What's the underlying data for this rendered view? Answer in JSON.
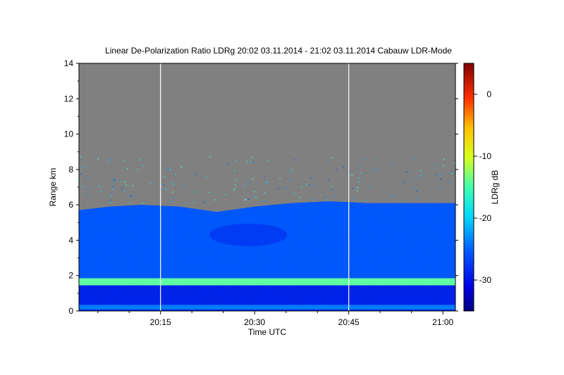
{
  "chart_data": {
    "type": "heatmap",
    "title": "Linear De-Polarization Ratio LDRg   20:02 03.11.2014 - 21:02 03.11.2014 Cabauw LDR-Mode",
    "xlabel": "Time UTC",
    "ylabel": "Range km",
    "colorbar_label": "LDRg dB",
    "x_range": [
      "20:02",
      "21:02"
    ],
    "x_ticks": [
      "20:15",
      "20:30",
      "20:45",
      "21:00"
    ],
    "y_range": [
      0,
      14
    ],
    "y_ticks": [
      0,
      2,
      4,
      6,
      8,
      10,
      12,
      14
    ],
    "colorbar_range": [
      -35,
      5
    ],
    "colorbar_ticks": [
      0,
      -10,
      -20,
      -30
    ],
    "background_color": "#808080",
    "vertical_gaps_utc": [
      "20:15",
      "20:45"
    ],
    "cloud_top_km": [
      {
        "time": "20:02",
        "top": 5.7
      },
      {
        "time": "20:07",
        "top": 5.9
      },
      {
        "time": "20:12",
        "top": 6.0
      },
      {
        "time": "20:18",
        "top": 5.9
      },
      {
        "time": "20:24",
        "top": 5.6
      },
      {
        "time": "20:30",
        "top": 5.9
      },
      {
        "time": "20:36",
        "top": 6.1
      },
      {
        "time": "20:42",
        "top": 6.2
      },
      {
        "time": "20:48",
        "top": 6.1
      },
      {
        "time": "20:54",
        "top": 6.1
      },
      {
        "time": "21:02",
        "top": 6.1
      }
    ],
    "melting_layer": {
      "range_km": [
        1.45,
        1.85
      ],
      "ldr_db": -14
    },
    "cloud_ldr_db": -26,
    "lower_region_ldr_db": -31,
    "near_surface_ldr_db": -20
  }
}
